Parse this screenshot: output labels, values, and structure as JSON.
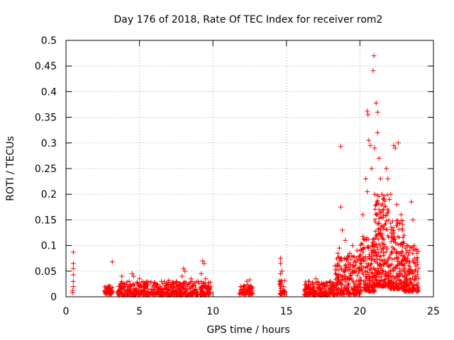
{
  "chart_data": {
    "type": "scatter",
    "title": "Day 176 of 2018, Rate Of TEC Index for receiver rom2",
    "xlabel": "GPS time / hours",
    "ylabel": "ROTI / TECUs",
    "xlim": [
      0,
      25
    ],
    "ylim": [
      0,
      0.5
    ],
    "x_ticks": [
      0,
      5,
      10,
      15,
      20,
      25
    ],
    "x_tick_labels": [
      "0",
      "5",
      "10",
      "15",
      "20",
      "25"
    ],
    "y_ticks": [
      0,
      0.05,
      0.1,
      0.15,
      0.2,
      0.25,
      0.3,
      0.35,
      0.4,
      0.45,
      0.5
    ],
    "y_tick_labels": [
      "0",
      "0.05",
      "0.1",
      "0.15",
      "0.2",
      "0.25",
      "0.3",
      "0.35",
      "0.4",
      "0.45",
      "0.5"
    ],
    "grid": true,
    "marker": "plus",
    "color": "#ff0000",
    "series": [
      {
        "name": "ROTI",
        "points": [
          [
            0.45,
            0.008
          ],
          [
            0.45,
            0.012
          ],
          [
            0.5,
            0.02
          ],
          [
            0.5,
            0.03
          ],
          [
            0.5,
            0.043
          ],
          [
            0.5,
            0.055
          ],
          [
            0.5,
            0.065
          ],
          [
            0.5,
            0.087
          ],
          [
            2.7,
            0.01
          ],
          [
            2.8,
            0.015
          ],
          [
            2.9,
            0.012
          ],
          [
            3.0,
            0.018
          ],
          [
            3.1,
            0.011
          ],
          [
            3.15,
            0.068
          ],
          [
            3.6,
            0.02
          ],
          [
            3.8,
            0.04
          ],
          [
            4.0,
            0.025
          ],
          [
            4.3,
            0.03
          ],
          [
            4.5,
            0.045
          ],
          [
            4.6,
            0.04
          ],
          [
            5.0,
            0.035
          ],
          [
            5.5,
            0.03
          ],
          [
            6.0,
            0.028
          ],
          [
            6.5,
            0.03
          ],
          [
            7.0,
            0.032
          ],
          [
            7.5,
            0.03
          ],
          [
            7.9,
            0.04
          ],
          [
            8.0,
            0.055
          ],
          [
            8.1,
            0.05
          ],
          [
            8.5,
            0.035
          ],
          [
            9.0,
            0.03
          ],
          [
            9.2,
            0.045
          ],
          [
            9.3,
            0.07
          ],
          [
            9.4,
            0.065
          ],
          [
            9.5,
            0.035
          ],
          [
            9.8,
            0.015
          ],
          [
            11.9,
            0.02
          ],
          [
            12.0,
            0.01
          ],
          [
            12.3,
            0.03
          ],
          [
            12.5,
            0.033
          ],
          [
            12.6,
            0.02
          ],
          [
            14.6,
            0.075
          ],
          [
            14.6,
            0.065
          ],
          [
            14.6,
            0.045
          ],
          [
            14.7,
            0.05
          ],
          [
            14.8,
            0.02
          ],
          [
            14.9,
            0.01
          ],
          [
            16.5,
            0.03
          ],
          [
            17.0,
            0.035
          ],
          [
            17.5,
            0.025
          ],
          [
            18.0,
            0.03
          ],
          [
            18.3,
            0.06
          ],
          [
            18.5,
            0.085
          ],
          [
            18.6,
            0.095
          ],
          [
            18.7,
            0.293
          ],
          [
            18.7,
            0.175
          ],
          [
            18.8,
            0.13
          ],
          [
            19.0,
            0.11
          ],
          [
            19.3,
            0.085
          ],
          [
            19.5,
            0.1
          ],
          [
            19.8,
            0.09
          ],
          [
            20.0,
            0.08
          ],
          [
            20.2,
            0.16
          ],
          [
            20.4,
            0.23
          ],
          [
            20.5,
            0.205
          ],
          [
            20.5,
            0.362
          ],
          [
            20.55,
            0.355
          ],
          [
            20.6,
            0.305
          ],
          [
            20.7,
            0.295
          ],
          [
            20.8,
            0.25
          ],
          [
            20.9,
            0.441
          ],
          [
            20.95,
            0.47
          ],
          [
            21.0,
            0.29
          ],
          [
            21.0,
            0.2
          ],
          [
            21.1,
            0.378
          ],
          [
            21.2,
            0.36
          ],
          [
            21.2,
            0.32
          ],
          [
            21.3,
            0.27
          ],
          [
            21.4,
            0.23
          ],
          [
            21.5,
            0.2
          ],
          [
            21.6,
            0.17
          ],
          [
            21.8,
            0.25
          ],
          [
            21.9,
            0.23
          ],
          [
            22.0,
            0.19
          ],
          [
            22.1,
            0.2
          ],
          [
            22.3,
            0.295
          ],
          [
            22.4,
            0.29
          ],
          [
            22.5,
            0.18
          ],
          [
            22.6,
            0.3
          ],
          [
            22.8,
            0.16
          ],
          [
            23.0,
            0.12
          ],
          [
            23.2,
            0.1
          ],
          [
            23.5,
            0.185
          ],
          [
            23.6,
            0.15
          ],
          [
            23.7,
            0.1
          ],
          [
            23.8,
            0.06
          ]
        ],
        "bands": [
          {
            "x_from": 2.6,
            "x_to": 3.2,
            "y_low": 0.005,
            "y_high": 0.022
          },
          {
            "x_from": 3.5,
            "x_to": 9.9,
            "y_low": 0.003,
            "y_high": 0.03
          },
          {
            "x_from": 11.8,
            "x_to": 12.7,
            "y_low": 0.005,
            "y_high": 0.025
          },
          {
            "x_from": 14.5,
            "x_to": 14.9,
            "y_low": 0.005,
            "y_high": 0.04
          },
          {
            "x_from": 16.2,
            "x_to": 18.3,
            "y_low": 0.003,
            "y_high": 0.03
          },
          {
            "x_from": 18.3,
            "x_to": 20.0,
            "y_low": 0.005,
            "y_high": 0.08
          },
          {
            "x_from": 20.0,
            "x_to": 21.0,
            "y_low": 0.01,
            "y_high": 0.12
          },
          {
            "x_from": 21.0,
            "x_to": 22.0,
            "y_low": 0.02,
            "y_high": 0.2
          },
          {
            "x_from": 22.0,
            "x_to": 23.0,
            "y_low": 0.015,
            "y_high": 0.15
          },
          {
            "x_from": 23.0,
            "x_to": 24.0,
            "y_low": 0.01,
            "y_high": 0.1
          }
        ]
      }
    ]
  }
}
